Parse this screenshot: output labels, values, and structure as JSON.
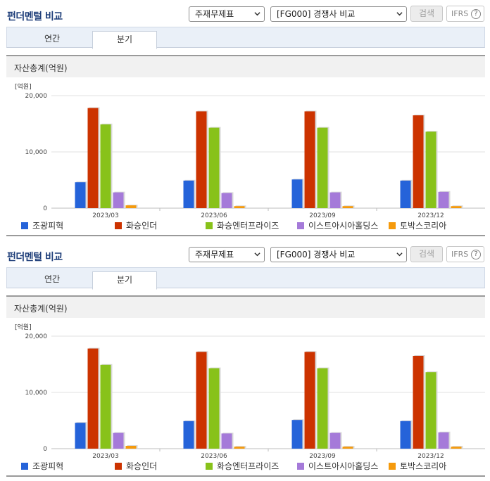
{
  "panels": [
    {
      "title": "펀더멘털 비교",
      "select_criteria": "주재무제표",
      "select_compare": "[FG000] 경쟁사 비교",
      "search_button": "검색",
      "ifrs_label": "IFRS",
      "help_glyph": "?",
      "tabs": [
        {
          "label": "연간",
          "active": false
        },
        {
          "label": "분기",
          "active": true
        }
      ],
      "chart_title": "자산총계(억원)"
    },
    {
      "title": "펀더멘털 비교",
      "select_criteria": "주재무제표",
      "select_compare": "[FG000] 경쟁사 비교",
      "search_button": "검색",
      "ifrs_label": "IFRS",
      "help_glyph": "?",
      "tabs": [
        {
          "label": "연간",
          "active": false
        },
        {
          "label": "분기",
          "active": true
        }
      ],
      "chart_title": "자산총계(억원)"
    }
  ],
  "icons": {
    "dropdown": "chevron-down-icon",
    "help": "question-circle-icon"
  },
  "chart_data": {
    "type": "bar",
    "unit_label": "[억원]",
    "categories": [
      "2023/03",
      "2023/06",
      "2023/09",
      "2023/12"
    ],
    "ylim": [
      0,
      20000
    ],
    "yticks": [
      0,
      10000,
      20000
    ],
    "ytick_labels": [
      "0",
      "10,000",
      "20,000"
    ],
    "grid": true,
    "legend_position": "bottom",
    "series": [
      {
        "name": "조광피혁",
        "color": "#2563d9",
        "values": [
          4600,
          4900,
          5100,
          4900
        ]
      },
      {
        "name": "화승인더",
        "color": "#cc3300",
        "values": [
          17800,
          17200,
          17200,
          16500
        ]
      },
      {
        "name": "화승엔터프라이즈",
        "color": "#88c21a",
        "values": [
          14900,
          14300,
          14300,
          13600
        ]
      },
      {
        "name": "이스트아시아홀딩스",
        "color": "#a57ad9",
        "values": [
          2800,
          2700,
          2800,
          2900
        ]
      },
      {
        "name": "토박스코리아",
        "color": "#f59a0c",
        "values": [
          500,
          350,
          350,
          350
        ]
      }
    ]
  }
}
